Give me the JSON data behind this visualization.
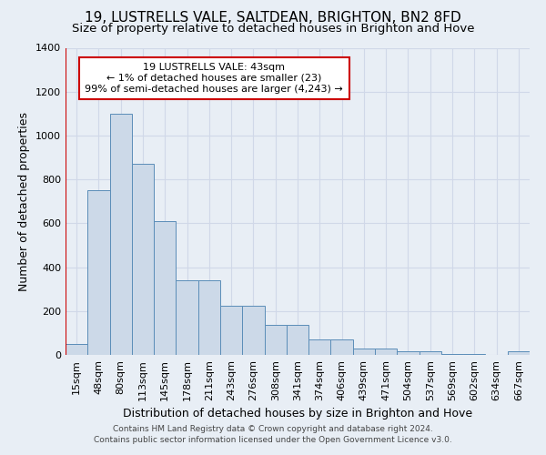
{
  "title": "19, LUSTRELLS VALE, SALTDEAN, BRIGHTON, BN2 8FD",
  "subtitle": "Size of property relative to detached houses in Brighton and Hove",
  "xlabel": "Distribution of detached houses by size in Brighton and Hove",
  "ylabel": "Number of detached properties",
  "footer_line1": "Contains HM Land Registry data © Crown copyright and database right 2024.",
  "footer_line2": "Contains public sector information licensed under the Open Government Licence v3.0.",
  "bar_labels": [
    "15sqm",
    "48sqm",
    "80sqm",
    "113sqm",
    "145sqm",
    "178sqm",
    "211sqm",
    "243sqm",
    "276sqm",
    "308sqm",
    "341sqm",
    "374sqm",
    "406sqm",
    "439sqm",
    "471sqm",
    "504sqm",
    "537sqm",
    "569sqm",
    "602sqm",
    "634sqm",
    "667sqm"
  ],
  "bar_values": [
    50,
    750,
    1100,
    870,
    610,
    340,
    340,
    225,
    225,
    135,
    135,
    70,
    70,
    28,
    28,
    18,
    18,
    5,
    5,
    0,
    15
  ],
  "bar_color": "#ccd9e8",
  "bar_edge_color": "#5b8db8",
  "marker_color": "#cc0000",
  "annotation_text_line1": "19 LUSTRELLS VALE: 43sqm",
  "annotation_text_line2": "← 1% of detached houses are smaller (23)",
  "annotation_text_line3": "99% of semi-detached houses are larger (4,243) →",
  "annotation_box_color": "#ffffff",
  "annotation_box_edge_color": "#cc0000",
  "ylim": [
    0,
    1400
  ],
  "yticks": [
    0,
    200,
    400,
    600,
    800,
    1000,
    1200,
    1400
  ],
  "grid_color": "#d0d8e8",
  "bg_color": "#e8eef5",
  "title_fontsize": 11,
  "subtitle_fontsize": 9.5,
  "ylabel_fontsize": 9,
  "xlabel_fontsize": 9,
  "tick_fontsize": 8,
  "annotation_fontsize": 8,
  "footer_fontsize": 6.5
}
